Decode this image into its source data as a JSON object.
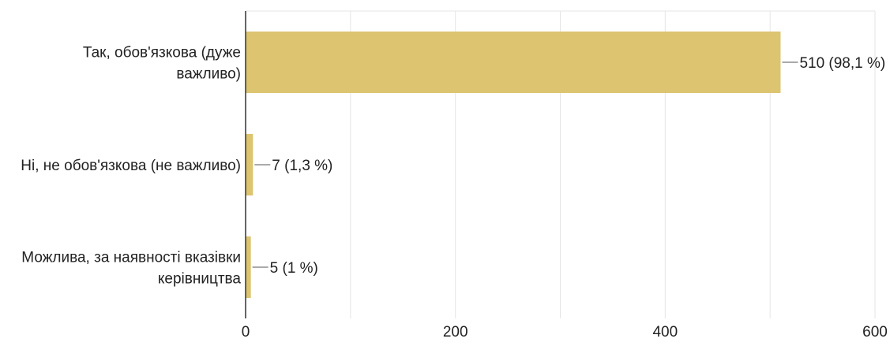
{
  "chart_data": {
    "type": "bar",
    "orientation": "horizontal",
    "categories": [
      "Так, обов'язкова (дуже важливо)",
      "Ні, не обов'язкова (не важливо)",
      "Можлива, за наявності вказівки керівництва"
    ],
    "category_lines": [
      [
        "Так, обов'язкова (дуже",
        "важливо)"
      ],
      [
        "Ні, не обов'язкова (не важливо)"
      ],
      [
        "Можлива, за наявності вказівки",
        "керівництва"
      ]
    ],
    "values": [
      510,
      7,
      5
    ],
    "data_labels": [
      "510 (98,1 %)",
      "7 (1,3 %)",
      "5 (1 %)"
    ],
    "xlim": [
      0,
      600
    ],
    "xticks": [
      0,
      200,
      400,
      600
    ],
    "xtick_labels": [
      "0",
      "200",
      "400",
      "600"
    ],
    "grid": true,
    "bar_color": "#dcc471",
    "grid_color": "#e6e6e6",
    "axis_color": "#333333"
  }
}
